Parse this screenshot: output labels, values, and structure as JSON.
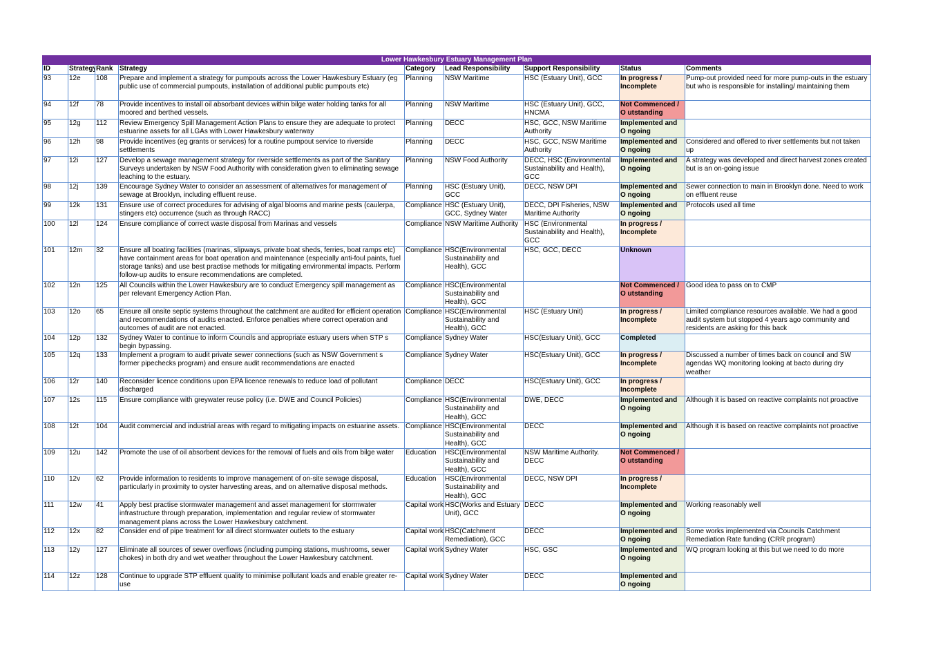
{
  "title": "Lower Hawkesbury Estuary Management Plan",
  "headers": [
    "ID",
    "Strategy",
    "Rank",
    "Strategy",
    "Category",
    "Lead Responsibility",
    "Support Responsibility",
    "Status",
    "Comments"
  ],
  "rows": [
    {
      "id": "93",
      "code": "12e",
      "rank": "108",
      "strategy": "Prepare and implement a strategy for pumpouts across the Lower Hawkesbury Estuary (eg public use of commercial pumpouts, installation of additional public pumpouts etc)",
      "category": "Planning",
      "lead": "NSW Maritime",
      "support": "HSC (Estuary Unit), GCC",
      "status": "In progress / Incomplete",
      "comments": "Pump-out provided     need for more pump-outs in the estuary but who is responsible for installing/ maintaining them"
    },
    {
      "id": "94",
      "code": "12f",
      "rank": "78",
      "strategy": "Provide incentives to install oil absorbant devices within bilge water holding tanks for all moored and berthed vessels.",
      "category": "Planning",
      "lead": "NSW Maritime",
      "support": "HSC (Estuary Unit), GCC, HNCMA",
      "status": "Not Commenced / O utstanding",
      "comments": ""
    },
    {
      "id": "95",
      "code": "12g",
      "rank": "112",
      "strategy": "Review Emergency Spill Management Action Plans to ensure they are adequate to protect estuarine assets for all LGAs with Lower Hawkesbury waterway",
      "category": "Planning",
      "lead": "DECC",
      "support": "HSC, GCC, NSW Maritime Authority",
      "status": "Implemented and O ngoing",
      "comments": ""
    },
    {
      "id": "96",
      "code": "12h",
      "rank": "98",
      "strategy": "Provide incentives (eg grants or services) for a routine pumpout service to riverside settlements",
      "category": "Planning",
      "lead": "DECC",
      "support": "HSC, GCC, NSW Maritime Authority",
      "status": "Implemented and O ngoing",
      "comments": "Considered and offered to river settlements but not taken up"
    },
    {
      "id": "97",
      "code": "12i",
      "rank": "127",
      "strategy": "Develop a sewage management strategy for riverside settlements as part of the     Sanitary Surveys     undertaken by NSW Food Authority with consideration given to  eliminating sewage leaching to the estuary.",
      "category": "Planning",
      "lead": "NSW Food Authority",
      "support": "DECC, HSC (Environmental Sustainability and Health), GCC",
      "status": "Implemented and O ngoing",
      "comments": "A strategy was developed and direct harvest zones created but is an on-going issue"
    },
    {
      "id": "98",
      "code": "12j",
      "rank": "139",
      "strategy": "Encourage Sydney Water to consider an assessment of alternatives for management of sewage at Brooklyn, including effluent reuse.",
      "category": "Planning",
      "lead": "HSC (Estuary Unit), GCC",
      "support": "DECC, NSW DPI",
      "status": "Implemented and O ngoing",
      "comments": "Sewer connection to main in Brooklyn done. Need to work on effluent reuse"
    },
    {
      "id": "99",
      "code": "12k",
      "rank": "131",
      "strategy": "Ensure use of correct procedures for advising of algal blooms and marine pests (caulerpa, stingers etc) occurrence (such as through RACC)",
      "category": "Compliance",
      "lead": "HSC (Estuary Unit), GCC, Sydney Water",
      "support": "DECC, DPI Fisheries, NSW Maritime Authority",
      "status": "Implemented and O ngoing",
      "comments": "Protocols used all time"
    },
    {
      "id": "100",
      "code": "12l",
      "rank": "124",
      "strategy": "Ensure compliance of correct waste disposal from Marinas and vessels",
      "category": "Compliance",
      "lead": "NSW Maritime Authority",
      "support": "HSC (Environmental Sustainability and Health), GCC",
      "status": "In progress / Incomplete",
      "comments": ""
    },
    {
      "id": "101",
      "code": "12m",
      "rank": "32",
      "strategy": "Ensure all boating facilities (marinas, slipways, private boat sheds, ferries, boat ramps etc) have containment areas for boat operation and maintenance (especially anti-foul paints, fuel storage tanks) and use best practise methods for mitigating environmental impacts. Perform follow-up audits to ensure recommendations are completed.",
      "category": "Compliance",
      "lead": "HSC(Environmental Sustainability and Health), GCC",
      "support": "HSC, GCC, DECC",
      "status": "Unknown",
      "comments": ""
    },
    {
      "id": "102",
      "code": "12n",
      "rank": "125",
      "strategy": "All Councils within the Lower Hawkesbury are to conduct Emergency spill management as per relevant Emergency Action Plan.",
      "category": "Compliance",
      "lead": "HSC(Environmental Sustainability and Health), GCC",
      "support": "",
      "status": "Not Commenced / O utstanding",
      "comments": "Good idea to pass on to CMP"
    },
    {
      "id": "103",
      "code": "12o",
      "rank": "65",
      "strategy": "Ensure all onsite septic systems throughout the catchment are audited for efficient operation and recommendations of audits enacted. Enforce penalties where correct operation and outcomes of audit are not enacted.",
      "category": "Compliance",
      "lead": "HSC(Environmental Sustainability and Health), GCC",
      "support": "HSC (Estuary Unit)",
      "status": "In progress / Incomplete",
      "comments": "Limited compliance resources available. We had a good audit system but stopped 4 years ago     community and residents are asking for this back"
    },
    {
      "id": "104",
      "code": "12p",
      "rank": "132",
      "strategy": "Sydney Water to continue to inform Councils and appropriate estuary users when STP    s begin bypassing.",
      "category": "Compliance",
      "lead": "Sydney Water",
      "support": "HSC(Estuary Unit), GCC",
      "status": "Completed",
      "comments": ""
    },
    {
      "id": "105",
      "code": "12q",
      "rank": "133",
      "strategy": "Implement a program to audit private sewer connections (such as NSW Government    s former     pipechecks     program) and ensure audit recommendations are enacted",
      "category": "Compliance",
      "lead": "Sydney Water",
      "support": "HSC(Estuary Unit), GCC",
      "status": "In progress / Incomplete",
      "comments": "Discussed a number of times     back on council and SW agendas     WQ monitoring looking at bacto during dry weather"
    },
    {
      "id": "106",
      "code": "12r",
      "rank": "140",
      "strategy": "Reconsider licence conditions upon EPA licence renewals to reduce load of pollutant discharged",
      "category": "Compliance",
      "lead": "DECC",
      "support": "HSC(Estuary Unit), GCC",
      "status": "In progress / Incomplete",
      "comments": ""
    },
    {
      "id": "107",
      "code": "12s",
      "rank": "115",
      "strategy": "Ensure compliance with greywater reuse policy (i.e. DWE and Council Policies)",
      "category": "Compliance",
      "lead": "HSC(Environmental Sustainability and Health), GCC",
      "support": " DWE, DECC",
      "status": "Implemented and O ngoing",
      "comments": "Although it is based on reactive complaints not proactive"
    },
    {
      "id": "108",
      "code": "12t",
      "rank": "104",
      "strategy": "Audit commercial and industrial areas with regard to mitigating impacts on estuarine assets.",
      "category": "Compliance",
      "lead": "HSC(Environmental Sustainability and Health), GCC",
      "support": "DECC",
      "status": "Implemented and O ngoing",
      "comments": "Although it is based on reactive complaints not proactive"
    },
    {
      "id": "109",
      "code": "12u",
      "rank": "142",
      "strategy": "Promote the use of oil absorbent devices for the removal of fuels and oils from bilge water",
      "category": "Education",
      "lead": "HSC(Environmental Sustainability and Health), GCC",
      "support": "NSW Maritime Authority. DECC",
      "status": "Not Commenced / O utstanding",
      "comments": ""
    },
    {
      "id": "110",
      "code": "12v",
      "rank": "62",
      "strategy": "Provide information to residents to improve management of on-site sewage disposal, particularly in proximity to oyster harvesting areas, and on alternative disposal methods.",
      "category": "Education",
      "lead": "HSC(Environmental Sustainability and Health), GCC",
      "support": "DECC, NSW DPI",
      "status": "In progress / Incomplete",
      "comments": ""
    },
    {
      "id": "111",
      "code": "12w",
      "rank": "41",
      "strategy": "Apply best practise stormwater management and asset management for stormwater infrastructure through preparation, implementation and regular review of stormwater management plans across the Lower Hawkesbury catchment.",
      "category": "Capital works",
      "lead": "HSC(Works and Estuary Unit), GCC",
      "support": "DECC",
      "status": "Implemented and O ngoing",
      "comments": "Working reasonably well"
    },
    {
      "id": "112",
      "code": "12x",
      "rank": "82",
      "strategy": "Consider end of pipe treatment for all direct stormwater outlets to the estuary",
      "category": "Capital works",
      "lead": "HSC(Catchment Remediation), GCC",
      "support": "DECC",
      "status": "Implemented and O ngoing",
      "comments": "Some works implemented via Councils Catchment Remediation Rate funding (CRR program)"
    },
    {
      "id": "113",
      "code": "12y",
      "rank": "127",
      "strategy": "Eliminate all sources of sewer overflows (including pumping stations, mushrooms, sewer chokes) in both dry and wet weather throughout the Lower Hawkesbury catchment.",
      "category": "Capital works",
      "lead": "Sydney Water",
      "support": "HSC, GSC",
      "status": "Implemented and O ngoing",
      "comments": "WQ program looking at this but we need to do more"
    },
    {
      "id": "114",
      "code": "12z",
      "rank": "128",
      "strategy": "Continue to upgrade STP effluent quality to minimise pollutant loads and enable greater re-use",
      "category": "Capital works",
      "lead": "Sydney Water",
      "support": "DECC",
      "status": "Implemented and O ngoing",
      "comments": ""
    }
  ],
  "status_colors": {
    "In progress / Incomplete": "#fde9d9",
    "Not Commenced / O utstanding": "#f29999",
    "Implemented and O ngoing": "#ebf1de",
    "Unknown": "#d9c3f7",
    "Completed": "#dbeef3"
  },
  "title_color": "#7030a0",
  "grid_color": "#5b8bd0"
}
